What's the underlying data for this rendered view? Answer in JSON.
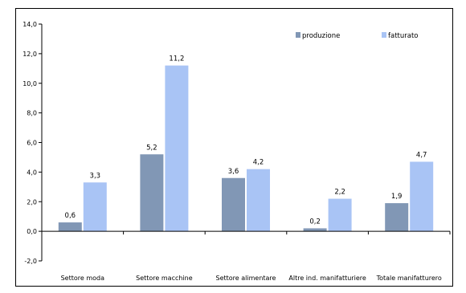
{
  "chart_data": {
    "type": "bar",
    "categories": [
      "Settore moda",
      "Settore macchine",
      "Settore alimentare",
      "Altre ind. manifatturiere",
      "Totale manifatturero"
    ],
    "series": [
      {
        "name": "produzione",
        "values": [
          0.6,
          5.2,
          3.6,
          0.2,
          1.9
        ],
        "labels": [
          "0,6",
          "5,2",
          "3,6",
          "0,2",
          "1,9"
        ],
        "color": "#8197b5"
      },
      {
        "name": "fatturato",
        "values": [
          3.3,
          11.2,
          4.2,
          2.2,
          4.7
        ],
        "labels": [
          "3,3",
          "11,2",
          "4,2",
          "2,2",
          "4,7"
        ],
        "color": "#a9c4f5"
      }
    ],
    "yticks": [
      14,
      12,
      10,
      8,
      6,
      4,
      2,
      0,
      -2
    ],
    "ytick_labels": [
      "14,0",
      "12,0",
      "10,0",
      "8,0",
      "6,0",
      "4,0",
      "2,0",
      "0,0",
      "-2,0"
    ],
    "ylim": [
      -2,
      14
    ],
    "grid": false,
    "legend": "top-right"
  }
}
